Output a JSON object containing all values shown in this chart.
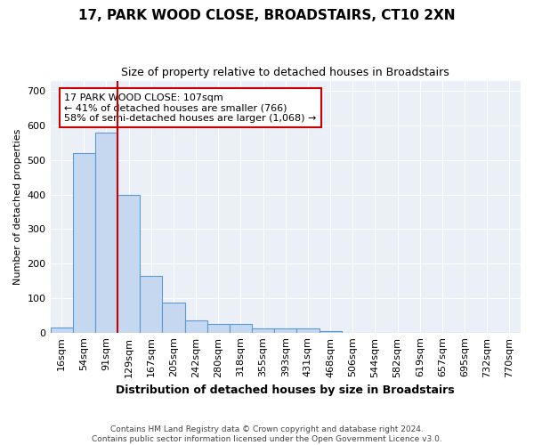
{
  "title": "17, PARK WOOD CLOSE, BROADSTAIRS, CT10 2XN",
  "subtitle": "Size of property relative to detached houses in Broadstairs",
  "xlabel": "Distribution of detached houses by size in Broadstairs",
  "ylabel": "Number of detached properties",
  "bin_labels": [
    "16sqm",
    "54sqm",
    "91sqm",
    "129sqm",
    "167sqm",
    "205sqm",
    "242sqm",
    "280sqm",
    "318sqm",
    "355sqm",
    "393sqm",
    "431sqm",
    "468sqm",
    "506sqm",
    "544sqm",
    "582sqm",
    "619sqm",
    "657sqm",
    "695sqm",
    "732sqm",
    "770sqm"
  ],
  "bar_values": [
    15,
    520,
    580,
    400,
    165,
    88,
    35,
    25,
    25,
    12,
    12,
    12,
    5,
    0,
    0,
    0,
    0,
    0,
    0,
    0,
    0
  ],
  "bar_color": "#c5d8f0",
  "bar_edgecolor": "#5b9bd5",
  "vline_color": "#cc0000",
  "annotation_line1": "17 PARK WOOD CLOSE: 107sqm",
  "annotation_line2": "← 41% of detached houses are smaller (766)",
  "annotation_line3": "58% of semi-detached houses are larger (1,068) →",
  "annotation_box_color": "#ffffff",
  "annotation_box_edgecolor": "#cc0000",
  "ylim": [
    0,
    730
  ],
  "yticks": [
    0,
    100,
    200,
    300,
    400,
    500,
    600,
    700
  ],
  "footer_line1": "Contains HM Land Registry data © Crown copyright and database right 2024.",
  "footer_line2": "Contains public sector information licensed under the Open Government Licence v3.0.",
  "bg_color": "#eaeff8",
  "title_fontsize": 11,
  "subtitle_fontsize": 9,
  "xlabel_fontsize": 9,
  "ylabel_fontsize": 8,
  "tick_fontsize": 8
}
